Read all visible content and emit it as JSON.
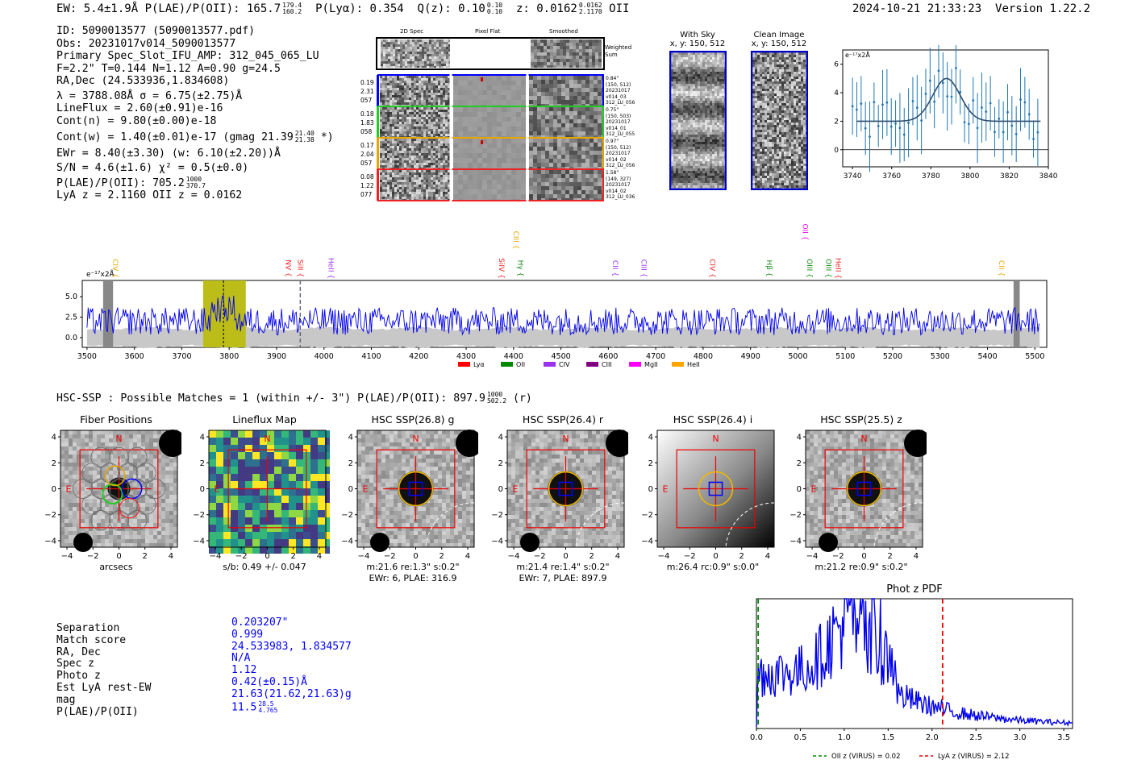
{
  "header": {
    "summary": "EW: 5.4±1.9Å  P(LAE)/P(OII): 165.7",
    "plae_hi": "179.4",
    "plae_lo": "160.2",
    "plya": "P(Lyα): 0.354",
    "q": "Q(z): 0.10",
    "q_hi": "0.10",
    "q_lo": "0.10",
    "zlabel": "z: 0.0162",
    "z_hi": "0.0162",
    "z_lo": "2.1170",
    "zline": "OII",
    "datetime": "2024-10-21 21:33:23",
    "version": "Version 1.22.2"
  },
  "info": {
    "id": "ID: 5090013577 (5090013577.pdf)",
    "obs": "Obs: 20231017v014_5090013577",
    "primary": "Primary Spec_Slot_IFU_AMP: 312_045_065_LU",
    "fwhm": "F=2.2\"  T=0.144  N=1.12  A=0.90  g=24.5",
    "radec": "RA,Dec (24.533936,1.834608)",
    "lambda": "λ = 3788.08Å  σ = 6.75(±2.75)Å",
    "lineflux": "LineFlux = 2.60(±0.91)e-16",
    "contn": "Cont(n) = 9.80(±0.00)e-18",
    "contw": "Cont(w) = 1.40(±0.01)e-17 (gmag 21.39",
    "contw_hi": "21.40",
    "contw_lo": "21.38",
    "contw_end": "*)",
    "ewr": "EWr = 8.40(±3.30) (w: 6.10(±2.20))Å",
    "sn": "S/N = 4.6(±1.6)  χ² = 0.5(±0.0)",
    "plae": "P(LAE)/P(OII): 705.2",
    "plae_hi": "1000",
    "plae_lo": "370.7",
    "lya": "LyA z = 2.1160  OII z = 0.0162"
  },
  "cutouts": {
    "col_2d": "2D Spec",
    "col_flat": "Pixel Flat",
    "col_smooth": "Smoothed",
    "weighted": "Weighted Sum",
    "rows": [
      {
        "l1": "0.19",
        "l2": "2.31",
        "l3": "057",
        "r1": "0.84\"",
        "r2": "(150, 512)",
        "r3": "20231017",
        "r4": "v014_03",
        "r5": "312_LU_056",
        "color": "#0000ff"
      },
      {
        "l1": "0.18",
        "l2": "1.83",
        "l3": "058",
        "r1": "0.75\"",
        "r2": "(150, 503)",
        "r3": "20231017",
        "r4": "v014_01",
        "r5": "312_LU_055",
        "color": "#22cc22"
      },
      {
        "l1": "0.17",
        "l2": "2.04",
        "l3": "057",
        "r1": "0.97\"",
        "r2": "(150, 512)",
        "r3": "20231017",
        "r4": "v014_02",
        "r5": "312_LU_056",
        "color": "#e6a600"
      },
      {
        "l1": "0.08",
        "l2": "1.22",
        "l3": "077",
        "r1": "1.58\"",
        "r2": "(149, 327)",
        "r3": "20231017",
        "r4": "v014_02",
        "r5": "312_LU_036",
        "color": "#ee2222"
      }
    ],
    "sky_title": "With Sky",
    "sky_xy": "x, y: 150, 512",
    "clean_title": "Clean Image",
    "clean_xy": "x, y: 150, 512"
  },
  "fit_chart": {
    "ylabel": "e⁻¹⁷x2Å",
    "xticks": [
      "3740",
      "3760",
      "3780",
      "3800",
      "3820",
      "3840"
    ],
    "yticks": [
      "0",
      "2",
      "4",
      "6"
    ]
  },
  "spectrum": {
    "ylabel": "e⁻¹⁷x2Å",
    "yticks": [
      "0.0",
      "2.5",
      "5.0"
    ],
    "xticks": [
      "3500",
      "3600",
      "3700",
      "3800",
      "3900",
      "4000",
      "4100",
      "4200",
      "4300",
      "4400",
      "4500",
      "4600",
      "4700",
      "4800",
      "4900",
      "5000",
      "5100",
      "5200",
      "5300",
      "5400",
      "5500"
    ],
    "lines": [
      {
        "name": "CIV",
        "color": "#e6a600"
      },
      {
        "name": "NV",
        "color": "#ee2222"
      },
      {
        "name": "SiII",
        "color": "#ee2222"
      },
      {
        "name": "HeII",
        "color": "#9933ee"
      },
      {
        "name": "SiIV",
        "color": "#ee2222"
      },
      {
        "name": "CIII",
        "color": "#e6a600"
      },
      {
        "name": "Hγ",
        "color": "#118811"
      },
      {
        "name": "CII",
        "color": "#9933ee"
      },
      {
        "name": "CIII",
        "color": "#9933ee"
      },
      {
        "name": "CIV",
        "color": "#ee2222"
      },
      {
        "name": "Hβ",
        "color": "#118811"
      },
      {
        "name": "OII",
        "color": "#ee00ee"
      },
      {
        "name": "OIII",
        "color": "#118811"
      },
      {
        "name": "OIII",
        "color": "#118811"
      },
      {
        "name": "HeII",
        "color": "#ee2222"
      },
      {
        "name": "CII",
        "color": "#e6a600"
      }
    ],
    "legend": [
      {
        "label": "Lyα",
        "color": "#ff0000"
      },
      {
        "label": "OII",
        "color": "#008800"
      },
      {
        "label": "CIV",
        "color": "#9933ee"
      },
      {
        "label": "CIII",
        "color": "#800080"
      },
      {
        "label": "MgII",
        "color": "#ff00ff"
      },
      {
        "label": "HeII",
        "color": "#ffa500"
      }
    ]
  },
  "hsc": {
    "title": "HSC-SSP : Possible Matches = 1 (within +/- 3\")  P(LAE)/P(OII): 897.9",
    "title_hi": "1000",
    "title_lo": "502.2",
    "title_end": "(r)",
    "axis_ticks": [
      "−4",
      "−2",
      "0",
      "2",
      "4"
    ],
    "north": "N",
    "east": "E",
    "panels": [
      {
        "title": "Fiber Positions",
        "cap1": "arcsecs",
        "cap2": ""
      },
      {
        "title": "Lineflux Map",
        "cap1": "s/b: 0.49 +/- 0.047",
        "cap2": ""
      },
      {
        "title": "HSC SSP(26.8) g",
        "cap1": "m:21.6  re:1.3\"  s:0.2\"",
        "cap2": "EWr: 6, PLAE: 316.9"
      },
      {
        "title": "HSC SSP(26.4) r",
        "cap1": "m:21.4  re:1.4\"  s:0.2\"",
        "cap2": "EWr: 7, PLAE: 897.9"
      },
      {
        "title": "HSC SSP(26.4) i",
        "cap1": "m:26.4 rc:0.9\"  s:0.0\"",
        "cap2": ""
      },
      {
        "title": "HSC SSP(25.5) z",
        "cap1": "m:21.2  re:0.9\"  s:0.2\"",
        "cap2": ""
      }
    ]
  },
  "match": {
    "labels": [
      "Separation",
      "Match score",
      "RA, Dec",
      "Spec z",
      "Photo z",
      "Est LyA rest-EW",
      "mag",
      "P(LAE)/P(OII)"
    ],
    "values": [
      "0.203207\"",
      "0.999",
      "24.533983, 1.834577",
      "N/A",
      "1.12",
      "0.42(±0.15)Å",
      "21.63(21.62,21.63)g",
      "11.5"
    ],
    "plae_hi": "28.5",
    "plae_lo": "4.765"
  },
  "photz": {
    "title": "Phot z PDF",
    "xticks": [
      "0.0",
      "0.5",
      "1.0",
      "1.5",
      "2.0",
      "2.5",
      "3.0",
      "3.5"
    ],
    "legend_oii": "OII z (VIRUS) = 0.02",
    "legend_lya": "LyA z (VIRUS) = 2.12",
    "oii_color": "#008800",
    "lya_color": "#ee0000"
  },
  "chart_data": {
    "type": "line",
    "title": "Phot z PDF",
    "xlabel": "z",
    "xlim": [
      0,
      3.6
    ],
    "markers": [
      {
        "name": "OII z (VIRUS)",
        "x": 0.02
      },
      {
        "name": "LyA z (VIRUS)",
        "x": 2.12
      }
    ]
  }
}
